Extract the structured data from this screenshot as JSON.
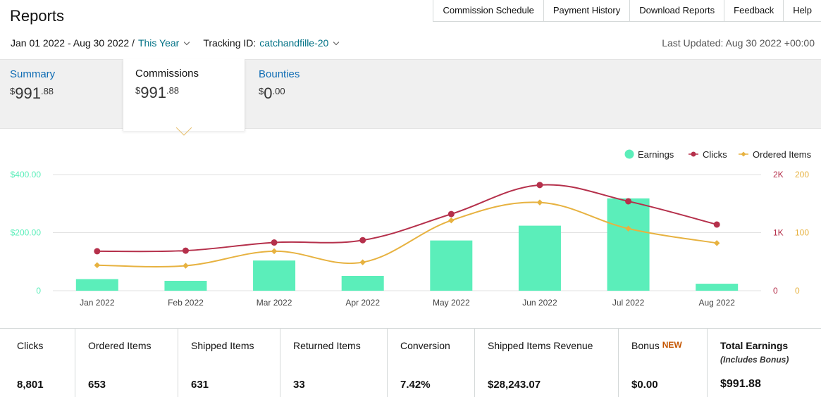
{
  "header": {
    "title": "Reports",
    "nav": [
      "Commission Schedule",
      "Payment History",
      "Download Reports",
      "Feedback",
      "Help"
    ]
  },
  "filters": {
    "date_range": "Jan 01 2022 - Aug 30 2022 /",
    "period": "This Year",
    "tracking_label": "Tracking ID:",
    "tracking_id": "catchandfille-20",
    "last_updated": "Last Updated: Aug 30 2022 +00:00"
  },
  "tabs": [
    {
      "label": "Summary",
      "currency": "$",
      "whole": "991",
      "cents": ".88"
    },
    {
      "label": "Commissions",
      "currency": "$",
      "whole": "991",
      "cents": ".88"
    },
    {
      "label": "Bounties",
      "currency": "$",
      "whole": "0",
      "cents": ".00"
    }
  ],
  "colors": {
    "earnings": "#5beeba",
    "clicks": "#b5304b",
    "ordered_items": "#e7b240",
    "link": "#0f6cb4",
    "new_badge": "#c45500"
  },
  "chart_data": {
    "type": "bar",
    "categories": [
      "Jan 2022",
      "Feb 2022",
      "Mar 2022",
      "Apr 2022",
      "May 2022",
      "Jun 2022",
      "Jul 2022",
      "Aug 2022"
    ],
    "series": [
      {
        "name": "Earnings",
        "type": "bar",
        "axis": "left",
        "values": [
          40,
          34,
          104,
          51,
          173,
          224,
          318,
          24
        ]
      },
      {
        "name": "Clicks",
        "type": "line",
        "axis": "right-1",
        "values": [
          680,
          690,
          830,
          870,
          1320,
          1820,
          1540,
          1140
        ]
      },
      {
        "name": "Ordered Items",
        "type": "line",
        "axis": "right-2",
        "values": [
          44,
          43,
          68,
          49,
          121,
          152,
          107,
          82
        ]
      }
    ],
    "axes": {
      "left": {
        "range": [
          0,
          400
        ],
        "ticks": [
          0,
          200,
          400
        ],
        "tick_labels": [
          "0",
          "$200.00",
          "$400.00"
        ]
      },
      "right1": {
        "range": [
          0,
          2000
        ],
        "ticks": [
          0,
          1000,
          2000
        ],
        "tick_labels": [
          "0",
          "1K",
          "2K"
        ]
      },
      "right2": {
        "range": [
          0,
          200
        ],
        "ticks": [
          0,
          100,
          200
        ],
        "tick_labels": [
          "0",
          "100",
          "200"
        ]
      }
    },
    "legend": [
      "Earnings",
      "Clicks",
      "Ordered Items"
    ],
    "legend_position": "top-right",
    "grid": true
  },
  "stats": [
    {
      "label": "Clicks",
      "value": "8,801"
    },
    {
      "label": "Ordered Items",
      "value": "653"
    },
    {
      "label": "Shipped Items",
      "value": "631"
    },
    {
      "label": "Returned Items",
      "value": "33"
    },
    {
      "label": "Conversion",
      "value": "7.42%"
    },
    {
      "label": "Shipped Items Revenue",
      "value": "$28,243.07"
    },
    {
      "label": "Bonus",
      "badge": "NEW",
      "value": "$0.00"
    },
    {
      "label": "Total Earnings",
      "sub": "(Includes Bonus)",
      "value": "$991.88"
    }
  ]
}
